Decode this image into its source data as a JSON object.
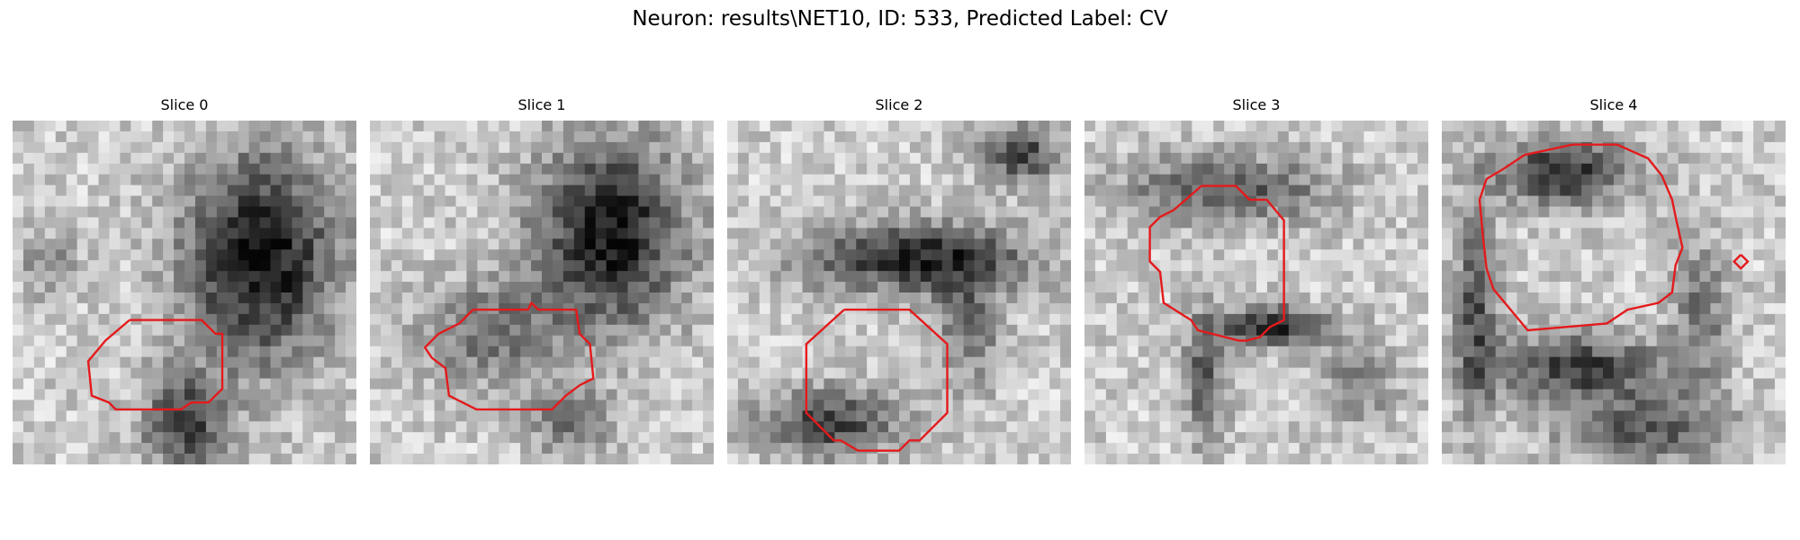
{
  "figure": {
    "title": "Neuron: results\\NET10, ID: 533, Predicted Label: CV",
    "contour_color": "#e41a1c",
    "colormap": "gray"
  },
  "panels": [
    {
      "title": "Slice 0"
    },
    {
      "title": "Slice 1"
    },
    {
      "title": "Slice 2"
    },
    {
      "title": "Slice 3"
    },
    {
      "title": "Slice 4"
    }
  ]
}
